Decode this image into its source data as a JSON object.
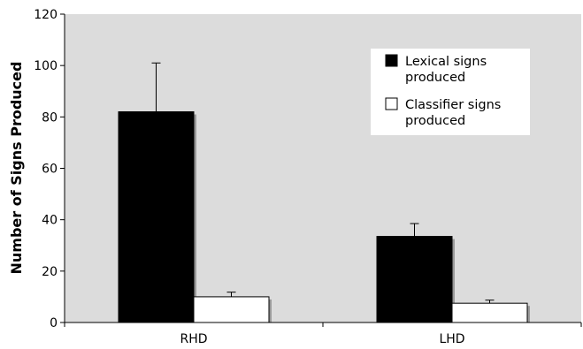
{
  "chart_data": {
    "type": "bar",
    "ylabel": "Number of Signs Produced",
    "xlabel": "",
    "ylim": [
      0,
      120
    ],
    "yticks": [
      0,
      20,
      40,
      60,
      80,
      100,
      120
    ],
    "categories": [
      "RHD",
      "LHD"
    ],
    "series": [
      {
        "name": "Lexical signs produced",
        "values": [
          82,
          33.5
        ],
        "errors": [
          19,
          5
        ],
        "color": "#000000"
      },
      {
        "name": "Classifier signs produced",
        "values": [
          10,
          7.5
        ],
        "errors": [
          1.8,
          1.2
        ],
        "color": "#ffffff"
      }
    ],
    "legend": {
      "position": "top-right",
      "entries": [
        {
          "lines": [
            "Lexical signs",
            "produced"
          ],
          "color": "#000000"
        },
        {
          "lines": [
            "Classifier signs",
            "produced"
          ],
          "color": "#ffffff"
        }
      ]
    },
    "plot_background": "#dcdcdc",
    "grid": false
  }
}
